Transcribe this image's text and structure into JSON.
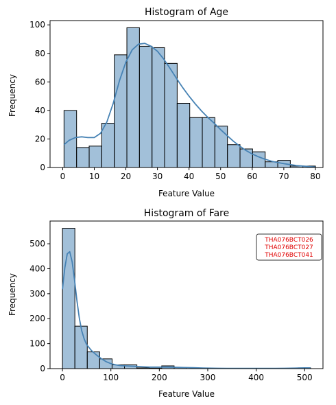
{
  "chart_data": [
    {
      "type": "bar",
      "title": "Histogram of Age",
      "xlabel": "Feature Value",
      "ylabel": "Frequency",
      "xlim": [
        -4,
        82.4
      ],
      "ylim": [
        0,
        103
      ],
      "xticks": [
        0,
        10,
        20,
        30,
        40,
        50,
        60,
        70,
        80
      ],
      "yticks": [
        0,
        20,
        40,
        60,
        80,
        100
      ],
      "bin_edges": [
        0.42,
        4.4,
        8.38,
        12.36,
        16.34,
        20.32,
        24.3,
        28.28,
        32.26,
        36.24,
        40.22,
        44.2,
        48.18,
        52.16,
        56.14,
        60.12,
        64.1,
        68.08,
        72.06,
        76.04,
        80.02
      ],
      "values": [
        40,
        14,
        15,
        31,
        79,
        98,
        85,
        84,
        73,
        45,
        35,
        35,
        29,
        16,
        13,
        11,
        4,
        5,
        1,
        1
      ],
      "kde": {
        "x": [
          0.4,
          2,
          4,
          6,
          8,
          10,
          12,
          14,
          16,
          18,
          20,
          22,
          24,
          26,
          28,
          30,
          32,
          34,
          36,
          38,
          40,
          42,
          44,
          46,
          48,
          50,
          52,
          54,
          56,
          58,
          60,
          62,
          64,
          66,
          68,
          70,
          72,
          74,
          76,
          78,
          80
        ],
        "y": [
          16,
          19,
          21,
          21.5,
          21,
          21,
          24,
          32,
          45,
          61,
          74,
          82.5,
          86.5,
          87,
          85,
          81.5,
          76,
          69.5,
          62.5,
          56,
          50,
          44.5,
          39.5,
          35,
          31,
          26.5,
          22.5,
          18.5,
          15,
          12,
          9.5,
          7.5,
          5.8,
          4.5,
          3.5,
          2.7,
          2,
          1.4,
          1.0,
          0.6,
          0.3
        ]
      },
      "bar_color": "#4682b4",
      "kde_color": "#4682b4"
    },
    {
      "type": "bar",
      "title": "Histogram of Fare",
      "xlabel": "Feature Value",
      "ylabel": "Frequency",
      "xlim": [
        -25.6,
        537.9
      ],
      "ylim": [
        0,
        591
      ],
      "xticks": [
        0,
        100,
        200,
        300,
        400,
        500
      ],
      "yticks": [
        0,
        100,
        200,
        300,
        400,
        500
      ],
      "bin_edges": [
        0,
        25.62,
        51.23,
        76.85,
        102.47,
        128.08,
        153.7,
        179.32,
        204.93,
        230.55,
        256.16,
        281.78,
        307.4,
        333.01,
        358.63,
        384.25,
        409.86,
        435.48,
        461.1,
        486.71,
        512.33
      ],
      "values": [
        562,
        170,
        67,
        39,
        15,
        15,
        3,
        2,
        11,
        4,
        0,
        2,
        0,
        0,
        0,
        0,
        0,
        0,
        0,
        3
      ],
      "kde": {
        "x": [
          0,
          5,
          10,
          15,
          20,
          25,
          30,
          35,
          40,
          45,
          50,
          60,
          70,
          80,
          90,
          100,
          110,
          120,
          130,
          140,
          150,
          160,
          170,
          180,
          190,
          200,
          210,
          220,
          230,
          240,
          250,
          260,
          270,
          280,
          290,
          300,
          320,
          340,
          360,
          380,
          400,
          420,
          440,
          460,
          480,
          500,
          512
        ],
        "y": [
          318,
          405,
          460,
          468,
          428,
          355,
          270,
          200,
          150,
          118,
          96,
          72,
          55,
          40,
          28,
          20,
          15,
          12,
          11,
          10,
          9,
          8,
          7,
          6,
          6,
          6,
          6,
          6,
          5.5,
          5,
          4.5,
          4,
          3.5,
          3,
          2.5,
          2,
          1.5,
          1,
          1,
          1,
          1,
          1,
          1,
          1.5,
          2,
          3,
          3
        ],
        "comment": ""
      },
      "annotation": [
        "THA076BCT026",
        "THA076BCT027",
        "THA076BCT041"
      ],
      "bar_color": "#4682b4",
      "kde_color": "#4682b4",
      "annotation_color": "#e00000"
    }
  ]
}
